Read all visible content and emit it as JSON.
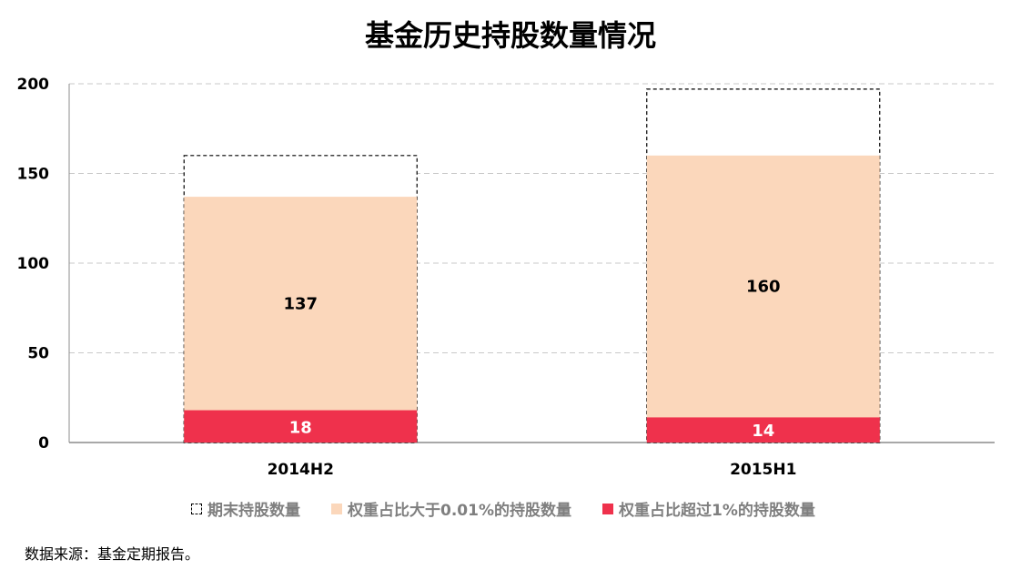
{
  "chart_data": {
    "type": "bar",
    "title": "基金历史持股数量情况",
    "categories": [
      "2014H2",
      "2015H1"
    ],
    "series": [
      {
        "name": "期末持股数量",
        "values": [
          160,
          197
        ],
        "color": "#ffffff",
        "style": "dashed-outline"
      },
      {
        "name": "权重占比大于0.01%的持股数量",
        "values": [
          137,
          160
        ],
        "color": "#fbd7bb"
      },
      {
        "name": "权重占比超过1%的持股数量",
        "values": [
          18,
          14
        ],
        "color": "#ef314c"
      }
    ],
    "data_labels": {
      "mid": [
        "137",
        "160"
      ],
      "low": [
        "18",
        "14"
      ]
    },
    "yticks": [
      "0",
      "50",
      "100",
      "150",
      "200"
    ],
    "ylim": [
      0,
      200
    ],
    "grid": true,
    "legend": "bottom"
  },
  "source_text": "数据来源：基金定期报告。"
}
